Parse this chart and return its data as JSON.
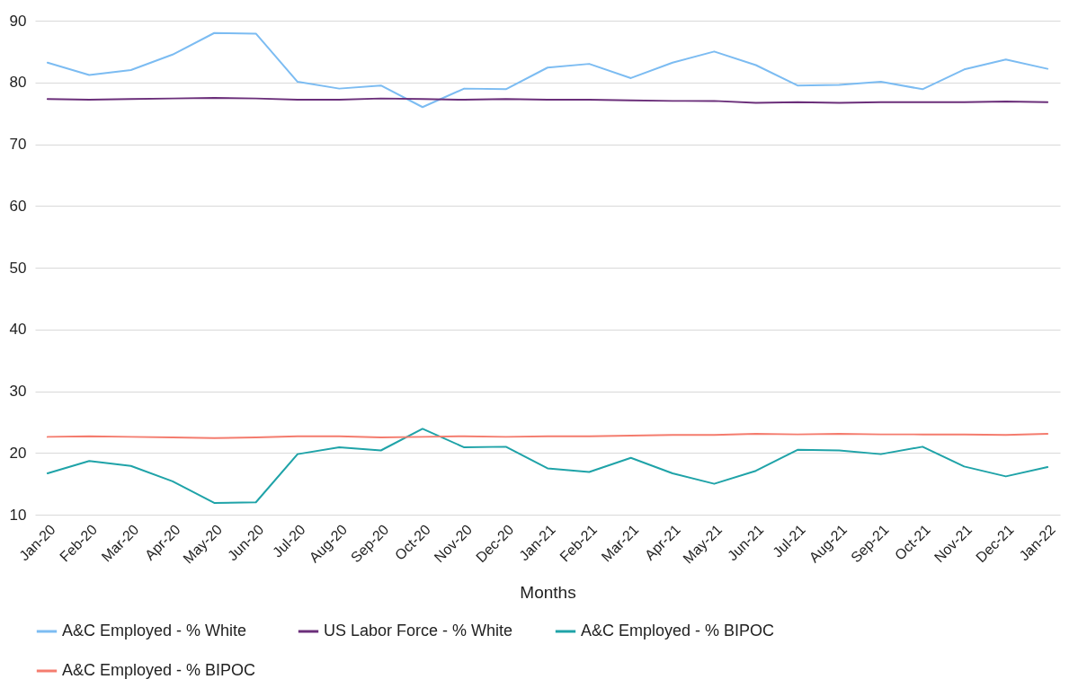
{
  "chart_data": {
    "type": "line",
    "xlabel": "Months",
    "categories": [
      "Jan-20",
      "Feb-20",
      "Mar-20",
      "Apr-20",
      "May-20",
      "Jun-20",
      "Jul-20",
      "Aug-20",
      "Sep-20",
      "Oct-20",
      "Nov-20",
      "Dec-20",
      "Jan-21",
      "Feb-21",
      "Mar-21",
      "Apr-21",
      "May-21",
      "Jun-21",
      "Jul-21",
      "Aug-21",
      "Sep-21",
      "Oct-21",
      "Nov-21",
      "Dec-21",
      "Jan-22"
    ],
    "series": [
      {
        "name": "A&C Employed - % White",
        "color": "#7cbcf2",
        "values": [
          83.2,
          81.2,
          82.0,
          84.5,
          88.0,
          87.9,
          80.1,
          79.0,
          79.5,
          76.0,
          79.0,
          78.9,
          82.4,
          83.0,
          80.7,
          83.2,
          85.0,
          82.8,
          79.5,
          79.6,
          80.1,
          78.9,
          82.1,
          83.7,
          82.2
        ]
      },
      {
        "name": "US Labor Force - % White",
        "color": "#6b2f7a",
        "values": [
          77.3,
          77.2,
          77.3,
          77.4,
          77.5,
          77.4,
          77.2,
          77.2,
          77.4,
          77.3,
          77.2,
          77.3,
          77.2,
          77.2,
          77.1,
          77.0,
          77.0,
          76.7,
          76.8,
          76.7,
          76.8,
          76.8,
          76.8,
          76.9,
          76.8
        ]
      },
      {
        "name": "A&C Employed - % BIPOC",
        "color": "#1fa3a8",
        "values": [
          16.7,
          18.7,
          17.9,
          15.4,
          11.9,
          12.0,
          19.8,
          20.9,
          20.4,
          23.9,
          20.9,
          21.0,
          17.5,
          16.9,
          19.2,
          16.7,
          15.0,
          17.1,
          20.5,
          20.4,
          19.8,
          21.0,
          17.8,
          16.2,
          17.7
        ]
      },
      {
        "name": "A&C Employed - % BIPOC",
        "color": "#f47c6e",
        "values": [
          22.6,
          22.7,
          22.6,
          22.5,
          22.4,
          22.5,
          22.7,
          22.7,
          22.5,
          22.6,
          22.7,
          22.6,
          22.7,
          22.7,
          22.8,
          22.9,
          22.9,
          23.1,
          23.0,
          23.1,
          23.0,
          23.0,
          23.0,
          22.9,
          23.1
        ]
      }
    ],
    "ylim": [
      10,
      90
    ],
    "yticks": [
      10,
      20,
      30,
      40,
      50,
      60,
      70,
      80,
      90
    ],
    "grid": "y",
    "legend": "bottom",
    "marker": "none",
    "line_style": "solid"
  }
}
